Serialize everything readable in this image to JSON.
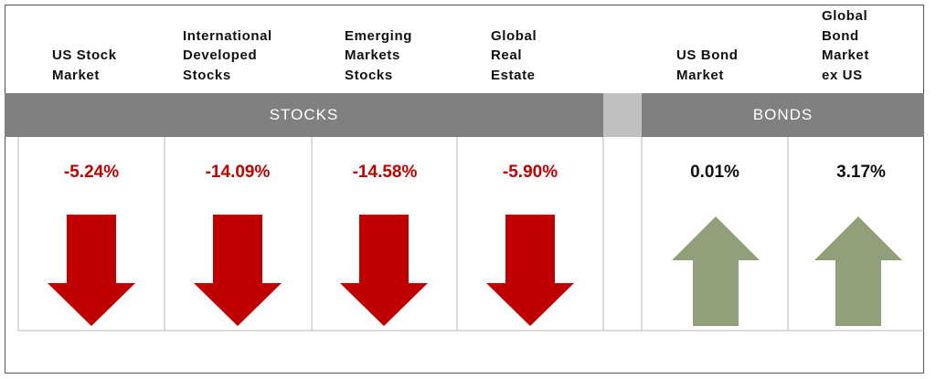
{
  "columns": [
    {
      "header": [
        "US Stock",
        "Market"
      ],
      "value": "-5.24%"
    },
    {
      "header": [
        "International",
        "Developed",
        "Stocks"
      ],
      "value": "-14.09%"
    },
    {
      "header": [
        "Emerging",
        "Markets",
        "Stocks"
      ],
      "value": "-14.58%"
    },
    {
      "header": [
        "Global",
        "Real",
        "Estate"
      ],
      "value": "-5.90%"
    },
    {
      "header": [
        "US Bond",
        "Market"
      ],
      "value": "0.01%"
    },
    {
      "header": [
        "Global",
        "Bond",
        "Market",
        "ex US"
      ],
      "value": "3.17%"
    }
  ],
  "groups": [
    "STOCKS",
    "BONDS"
  ]
}
